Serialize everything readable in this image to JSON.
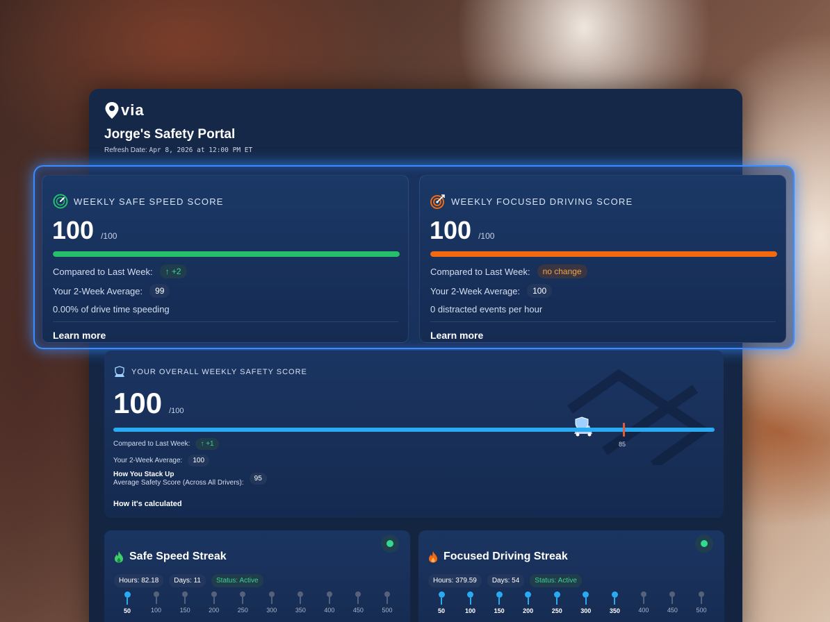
{
  "portal": {
    "logo_text": "via",
    "title": "Jorge's Safety Portal",
    "refresh_label": "Refresh Date:",
    "refresh_value": "Apr 8, 2026 at 12:00 PM ET"
  },
  "safe_speed": {
    "heading": "WEEKLY SAFE SPEED SCORE",
    "score": "100",
    "out_of": "/100",
    "bar_fraction": 1.0,
    "bar_color": "#26c06a",
    "compared_label": "Compared to Last Week:",
    "compared_value": "↑ +2",
    "avg_label": "Your 2-Week Average:",
    "avg_value": "99",
    "detail": "0.00% of drive time speeding",
    "learn_more": "Learn more"
  },
  "focused": {
    "heading": "WEEKLY FOCUSED DRIVING SCORE",
    "score": "100",
    "out_of": "/100",
    "bar_fraction": 1.0,
    "bar_color": "#f06a12",
    "compared_label": "Compared to Last Week:",
    "compared_value": "no change",
    "avg_label": "Your 2-Week Average:",
    "avg_value": "100",
    "detail": "0 distracted events per hour",
    "learn_more": "Learn more"
  },
  "overall": {
    "heading": "YOUR OVERALL WEEKLY SAFETY SCORE",
    "score": "100",
    "out_of": "/100",
    "bar_fraction": 1.0,
    "marker_value": "85",
    "compared_label": "Compared to Last Week:",
    "compared_value": "↑ +1",
    "avg_label": "Your 2-Week Average:",
    "avg_value": "100",
    "stack_title": "How You Stack Up",
    "stack_label": "Average Safety Score (Across All Drivers):",
    "stack_value": "95",
    "how_calculated": "How it's calculated"
  },
  "streaks": [
    {
      "title": "Safe Speed Streak",
      "hours": "Hours: 82.18",
      "days": "Days: 11",
      "status": "Status: Active",
      "milestones": [
        "50",
        "100",
        "150",
        "200",
        "250",
        "300",
        "350",
        "400",
        "450",
        "500"
      ],
      "achieved_count": 1
    },
    {
      "title": "Focused Driving Streak",
      "hours": "Hours: 379.59",
      "days": "Days: 54",
      "status": "Status: Active",
      "milestones": [
        "50",
        "100",
        "150",
        "200",
        "250",
        "300",
        "350",
        "400",
        "450",
        "500"
      ],
      "achieved_count": 7
    }
  ],
  "colors": {
    "accent_blue": "#2aaaf0",
    "glow_blue": "#3d8cff",
    "active_green": "#35d88c",
    "marker_red": "#e15a3a"
  },
  "icons": {
    "logo": "map-pin-icon",
    "safe_speed": "speedometer-icon",
    "focused": "target-icon",
    "overall": "car-shield-icon",
    "streak": "flame-icon"
  }
}
